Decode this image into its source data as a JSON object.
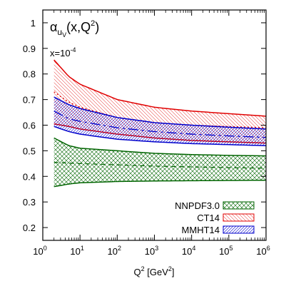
{
  "chart_data": {
    "type": "area",
    "title": {
      "alpha": "α",
      "sub": "u",
      "subsub": "V",
      "args": "(x,Q",
      "sup": "2",
      "close": ")"
    },
    "annotation": {
      "base": "x=10",
      "exp": "-4"
    },
    "xlabel": {
      "base": "Q",
      "sup": "2",
      "rest": " [GeV",
      "sup2": "2",
      "close": "]"
    },
    "xscale": "log",
    "xlim": [
      1,
      1000000
    ],
    "ylim": [
      0.15,
      1.05
    ],
    "x_ticks": [
      {
        "base": "10",
        "exp": "0",
        "value": 1
      },
      {
        "base": "10",
        "exp": "1",
        "value": 10
      },
      {
        "base": "10",
        "exp": "2",
        "value": 100
      },
      {
        "base": "10",
        "exp": "3",
        "value": 1000
      },
      {
        "base": "10",
        "exp": "4",
        "value": 10000
      },
      {
        "base": "10",
        "exp": "5",
        "value": 100000
      },
      {
        "base": "10",
        "exp": "6",
        "value": 1000000
      }
    ],
    "y_ticks": [
      "0.2",
      "0.3",
      "0.4",
      "0.5",
      "0.6",
      "0.7",
      "0.8",
      "0.9",
      "1"
    ],
    "x": [
      2,
      5,
      10,
      100,
      1000,
      10000,
      100000,
      1000000
    ],
    "series": [
      {
        "name": "NNPDF3.0",
        "color": "#006400",
        "hatch": "crosshatch",
        "upper": [
          0.55,
          0.52,
          0.51,
          0.5,
          0.49,
          0.485,
          0.482,
          0.48
        ],
        "central": [
          0.455,
          0.452,
          0.45,
          0.445,
          0.44,
          0.437,
          0.434,
          0.432
        ],
        "lower": [
          0.36,
          0.37,
          0.375,
          0.38,
          0.382,
          0.383,
          0.384,
          0.385
        ]
      },
      {
        "name": "CT14",
        "color": "#e00000",
        "hatch": "diagonal-left",
        "upper": [
          0.855,
          0.79,
          0.76,
          0.7,
          0.67,
          0.655,
          0.645,
          0.635
        ],
        "central": [
          0.73,
          0.69,
          0.67,
          0.63,
          0.61,
          0.6,
          0.595,
          0.59
        ],
        "lower": [
          0.605,
          0.595,
          0.585,
          0.565,
          0.55,
          0.54,
          0.535,
          0.53
        ]
      },
      {
        "name": "MMHT14",
        "color": "#0000cc",
        "hatch": "diagonal-right",
        "upper": [
          0.71,
          0.68,
          0.665,
          0.63,
          0.61,
          0.6,
          0.592,
          0.585
        ],
        "central": [
          0.655,
          0.625,
          0.615,
          0.59,
          0.575,
          0.565,
          0.558,
          0.552
        ],
        "lower": [
          0.595,
          0.575,
          0.565,
          0.545,
          0.535,
          0.528,
          0.524,
          0.52
        ]
      }
    ],
    "legend": {
      "placement": "bottom-right",
      "entries": [
        "NNPDF3.0",
        "CT14",
        "MMHT14"
      ]
    }
  }
}
